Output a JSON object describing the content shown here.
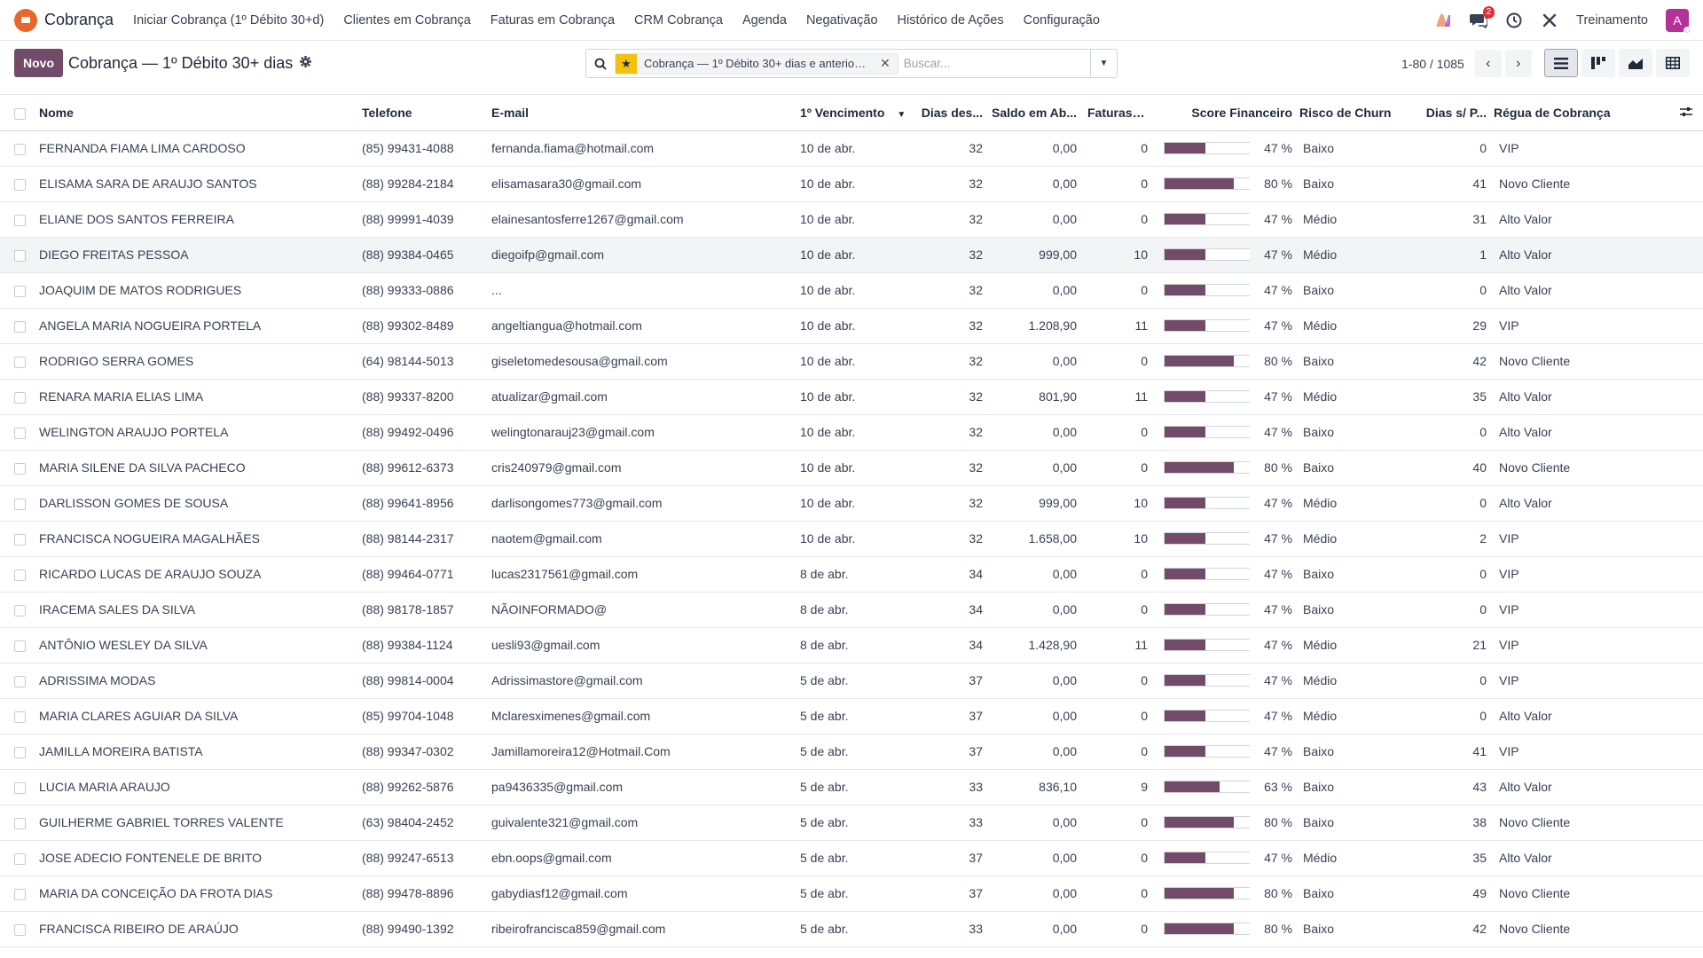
{
  "app": {
    "name": "Cobrança"
  },
  "menu": [
    "Iniciar Cobrança (1º Débito 30+d)",
    "Clientes em Cobrança",
    "Faturas em Cobrança",
    "CRM Cobrança",
    "Agenda",
    "Negativação",
    "Histórico de Ações",
    "Configuração"
  ],
  "nav_right": {
    "company": "Treinamento",
    "messages_badge": "2",
    "avatar_letter": "A"
  },
  "control": {
    "new_label": "Novo",
    "title": "Cobrança — 1º Débito 30+ dias",
    "facet": "Cobrança — 1º Débito 30+ dias e anterior ...",
    "search_placeholder": "Buscar...",
    "pager": "1-80 / 1085"
  },
  "columns": {
    "name": "Nome",
    "phone": "Telefone",
    "email": "E-mail",
    "due": "1º Vencimento",
    "days": "Dias des...",
    "balance": "Saldo em Ab...",
    "invoices": "Faturas e...",
    "score": "Score Financeiro",
    "churn": "Risco de Churn",
    "dias_sp": "Dias s/ P...",
    "regua": "Régua de Cobrança"
  },
  "rows": [
    {
      "name": "FERNANDA FIAMA LIMA CARDOSO",
      "phone": "(85) 99431-4088",
      "email": "fernanda.fiama@hotmail.com",
      "due": "10 de abr.",
      "days": "32",
      "balance": "0,00",
      "invoices": "0",
      "score": 47,
      "score_label": "47 %",
      "churn": "Baixo",
      "dias_sp": "0",
      "regua": "VIP"
    },
    {
      "name": "ELISAMA SARA DE ARAUJO SANTOS",
      "phone": "(88) 99284-2184",
      "email": "elisamasara30@gmail.com",
      "due": "10 de abr.",
      "days": "32",
      "balance": "0,00",
      "invoices": "0",
      "score": 80,
      "score_label": "80 %",
      "churn": "Baixo",
      "dias_sp": "41",
      "regua": "Novo Cliente"
    },
    {
      "name": "ELIANE DOS SANTOS FERREIRA",
      "phone": "(88) 99991-4039",
      "email": "elainesantosferre1267@gmail.com",
      "due": "10 de abr.",
      "days": "32",
      "balance": "0,00",
      "invoices": "0",
      "score": 47,
      "score_label": "47 %",
      "churn": "Médio",
      "dias_sp": "31",
      "regua": "Alto Valor"
    },
    {
      "name": "DIEGO FREITAS PESSOA",
      "phone": "(88) 99384-0465",
      "email": "diegoifp@gmail.com",
      "due": "10 de abr.",
      "days": "32",
      "balance": "999,00",
      "invoices": "10",
      "score": 47,
      "score_label": "47 %",
      "churn": "Médio",
      "dias_sp": "1",
      "regua": "Alto Valor"
    },
    {
      "name": "JOAQUIM DE MATOS RODRIGUES",
      "phone": "(88) 99333-0886",
      "email": "...",
      "due": "10 de abr.",
      "days": "32",
      "balance": "0,00",
      "invoices": "0",
      "score": 47,
      "score_label": "47 %",
      "churn": "Baixo",
      "dias_sp": "0",
      "regua": "Alto Valor"
    },
    {
      "name": "ANGELA MARIA NOGUEIRA PORTELA",
      "phone": "(88) 99302-8489",
      "email": "angeltiangua@hotmail.com",
      "due": "10 de abr.",
      "days": "32",
      "balance": "1.208,90",
      "invoices": "11",
      "score": 47,
      "score_label": "47 %",
      "churn": "Médio",
      "dias_sp": "29",
      "regua": "VIP"
    },
    {
      "name": "RODRIGO SERRA GOMES",
      "phone": "(64) 98144-5013",
      "email": "giseletomedesousa@gmail.com",
      "due": "10 de abr.",
      "days": "32",
      "balance": "0,00",
      "invoices": "0",
      "score": 80,
      "score_label": "80 %",
      "churn": "Baixo",
      "dias_sp": "42",
      "regua": "Novo Cliente"
    },
    {
      "name": "RENARA MARIA ELIAS LIMA",
      "phone": "(88) 99337-8200",
      "email": "atualizar@gmail.com",
      "due": "10 de abr.",
      "days": "32",
      "balance": "801,90",
      "invoices": "11",
      "score": 47,
      "score_label": "47 %",
      "churn": "Médio",
      "dias_sp": "35",
      "regua": "Alto Valor"
    },
    {
      "name": "WELINGTON ARAUJO PORTELA",
      "phone": "(88) 99492-0496",
      "email": "welingtonarauj23@gmail.com",
      "due": "10 de abr.",
      "days": "32",
      "balance": "0,00",
      "invoices": "0",
      "score": 47,
      "score_label": "47 %",
      "churn": "Baixo",
      "dias_sp": "0",
      "regua": "Alto Valor"
    },
    {
      "name": "MARIA SILENE DA SILVA PACHECO",
      "phone": "(88) 99612-6373",
      "email": "cris240979@gmail.com",
      "due": "10 de abr.",
      "days": "32",
      "balance": "0,00",
      "invoices": "0",
      "score": 80,
      "score_label": "80 %",
      "churn": "Baixo",
      "dias_sp": "40",
      "regua": "Novo Cliente"
    },
    {
      "name": "DARLISSON GOMES DE SOUSA",
      "phone": "(88) 99641-8956",
      "email": "darlisongomes773@gmail.com",
      "due": "10 de abr.",
      "days": "32",
      "balance": "999,00",
      "invoices": "10",
      "score": 47,
      "score_label": "47 %",
      "churn": "Médio",
      "dias_sp": "0",
      "regua": "Alto Valor"
    },
    {
      "name": "FRANCISCA NOGUEIRA MAGALHÃES",
      "phone": "(88) 98144-2317",
      "email": "naotem@gmail.com",
      "due": "10 de abr.",
      "days": "32",
      "balance": "1.658,00",
      "invoices": "10",
      "score": 47,
      "score_label": "47 %",
      "churn": "Médio",
      "dias_sp": "2",
      "regua": "VIP"
    },
    {
      "name": "RICARDO LUCAS DE ARAUJO SOUZA",
      "phone": "(88) 99464-0771",
      "email": "lucas2317561@gmail.com",
      "due": "8 de abr.",
      "days": "34",
      "balance": "0,00",
      "invoices": "0",
      "score": 47,
      "score_label": "47 %",
      "churn": "Baixo",
      "dias_sp": "0",
      "regua": "VIP"
    },
    {
      "name": "IRACEMA SALES DA SILVA",
      "phone": "(88) 98178-1857",
      "email": "NÃOINFORMADO@",
      "due": "8 de abr.",
      "days": "34",
      "balance": "0,00",
      "invoices": "0",
      "score": 47,
      "score_label": "47 %",
      "churn": "Baixo",
      "dias_sp": "0",
      "regua": "VIP"
    },
    {
      "name": "ANTÔNIO WESLEY DA SILVA",
      "phone": "(88) 99384-1124",
      "email": "uesli93@gmail.com",
      "due": "8 de abr.",
      "days": "34",
      "balance": "1.428,90",
      "invoices": "11",
      "score": 47,
      "score_label": "47 %",
      "churn": "Médio",
      "dias_sp": "21",
      "regua": "VIP"
    },
    {
      "name": "ADRISSIMA MODAS",
      "phone": "(88) 99814-0004",
      "email": "Adrissimastore@gmail.com",
      "due": "5 de abr.",
      "days": "37",
      "balance": "0,00",
      "invoices": "0",
      "score": 47,
      "score_label": "47 %",
      "churn": "Médio",
      "dias_sp": "0",
      "regua": "VIP"
    },
    {
      "name": "MARIA CLARES AGUIAR DA SILVA",
      "phone": "(85) 99704-1048",
      "email": "Mclaresximenes@gmail.com",
      "due": "5 de abr.",
      "days": "37",
      "balance": "0,00",
      "invoices": "0",
      "score": 47,
      "score_label": "47 %",
      "churn": "Médio",
      "dias_sp": "0",
      "regua": "Alto Valor"
    },
    {
      "name": "JAMILLA MOREIRA BATISTA",
      "phone": "(88) 99347-0302",
      "email": "Jamillamoreira12@Hotmail.Com",
      "due": "5 de abr.",
      "days": "37",
      "balance": "0,00",
      "invoices": "0",
      "score": 47,
      "score_label": "47 %",
      "churn": "Baixo",
      "dias_sp": "41",
      "regua": "VIP"
    },
    {
      "name": "LUCIA MARIA ARAUJO",
      "phone": "(88) 99262-5876",
      "email": "pa9436335@gmail.com",
      "due": "5 de abr.",
      "days": "33",
      "balance": "836,10",
      "invoices": "9",
      "score": 63,
      "score_label": "63 %",
      "churn": "Baixo",
      "dias_sp": "43",
      "regua": "Alto Valor"
    },
    {
      "name": "GUILHERME GABRIEL TORRES VALENTE",
      "phone": "(63) 98404-2452",
      "email": "guivalente321@gmail.com",
      "due": "5 de abr.",
      "days": "33",
      "balance": "0,00",
      "invoices": "0",
      "score": 80,
      "score_label": "80 %",
      "churn": "Baixo",
      "dias_sp": "38",
      "regua": "Novo Cliente"
    },
    {
      "name": "JOSE ADECIO FONTENELE DE BRITO",
      "phone": "(88) 99247-6513",
      "email": "ebn.oops@gmail.com",
      "due": "5 de abr.",
      "days": "37",
      "balance": "0,00",
      "invoices": "0",
      "score": 47,
      "score_label": "47 %",
      "churn": "Médio",
      "dias_sp": "35",
      "regua": "Alto Valor"
    },
    {
      "name": "MARIA DA CONCEIÇÃO DA FROTA DIAS",
      "phone": "(88) 99478-8896",
      "email": "gabydiasf12@gmail.com",
      "due": "5 de abr.",
      "days": "37",
      "balance": "0,00",
      "invoices": "0",
      "score": 80,
      "score_label": "80 %",
      "churn": "Baixo",
      "dias_sp": "49",
      "regua": "Novo Cliente"
    },
    {
      "name": "FRANCISCA RIBEIRO DE ARAÚJO",
      "phone": "(88) 99490-1392",
      "email": "ribeirofrancisca859@gmail.com",
      "due": "5 de abr.",
      "days": "33",
      "balance": "0,00",
      "invoices": "0",
      "score": 80,
      "score_label": "80 %",
      "churn": "Baixo",
      "dias_sp": "42",
      "regua": "Novo Cliente"
    }
  ],
  "colors": {
    "primary": "#714b67",
    "star": "#f4c20d",
    "badge": "#e0313a",
    "app_logo": "#e8652b"
  }
}
